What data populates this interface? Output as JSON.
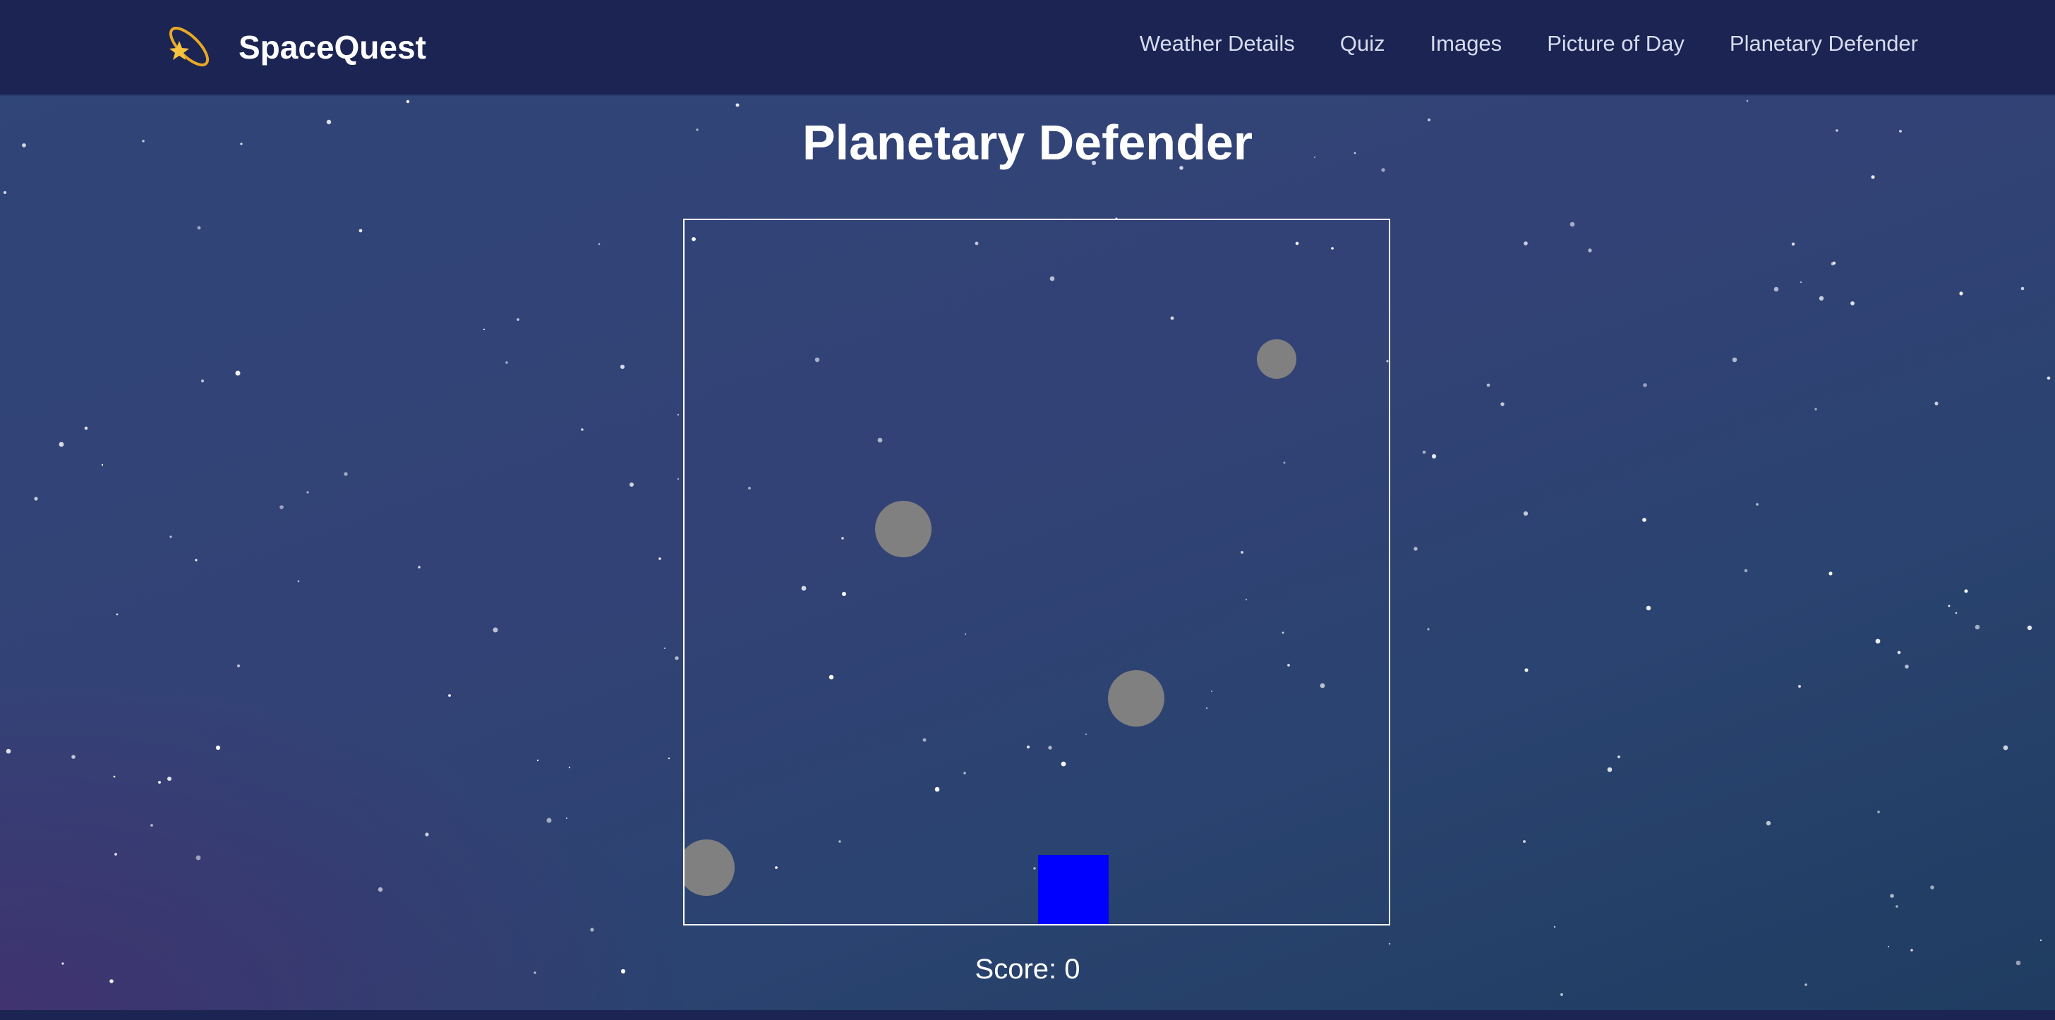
{
  "nav": {
    "brand": "SpaceQuest",
    "logo_icon": "dizzy-star-icon",
    "links": [
      {
        "label": "Weather Details"
      },
      {
        "label": "Quiz"
      },
      {
        "label": "Images"
      },
      {
        "label": "Picture of Day"
      },
      {
        "label": "Planetary Defender"
      }
    ]
  },
  "page": {
    "title": "Planetary Defender"
  },
  "game": {
    "score_label": "Score: 0",
    "score": 0,
    "colors": {
      "player": "#0000ff",
      "asteroid": "#808080",
      "border": "#ffffff"
    }
  },
  "colors": {
    "nav_bg": "#1b2452",
    "background": "#2f4578"
  }
}
